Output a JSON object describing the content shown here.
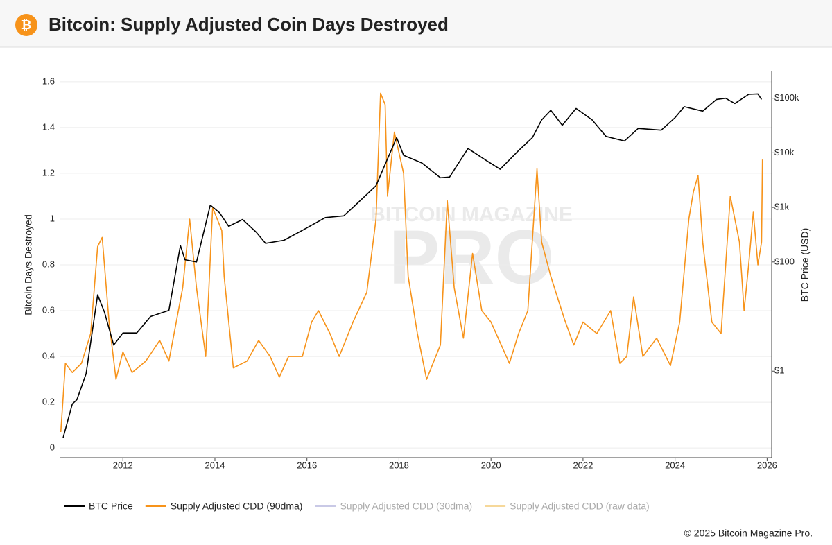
{
  "header": {
    "title": "Bitcoin: Supply Adjusted Coin Days Destroyed"
  },
  "footer": {
    "copyright": "© 2025 Bitcoin Magazine Pro."
  },
  "watermark": {
    "top": "BITCOIN MAGAZINE",
    "main": "PRO"
  },
  "chart_data": {
    "type": "line",
    "ylabel": "Bitcoin Days Destroyed",
    "y2label": "BTC Price (USD)",
    "xlim": [
      2010.64,
      2026.1
    ],
    "xticks": [
      2012,
      2014,
      2016,
      2018,
      2020,
      2022,
      2024,
      2026
    ],
    "ylim": [
      -0.042,
      1.645
    ],
    "yticks": [
      0,
      0.2,
      0.4,
      0.6,
      0.8,
      1,
      1.2,
      1.4,
      1.6
    ],
    "y2lim": [
      0.026,
      310000
    ],
    "y2log": true,
    "y2ticks": [
      {
        "value": 1,
        "label": "$1"
      },
      {
        "value": 100,
        "label": "$100"
      },
      {
        "value": 1000,
        "label": "$1k"
      },
      {
        "value": 10000,
        "label": "$10k"
      },
      {
        "value": 100000,
        "label": "$100k"
      }
    ],
    "grid": true,
    "series": [
      {
        "name": "BTC Price",
        "color": "#000000",
        "axis": "y2",
        "x": [
          2010.7,
          2010.9,
          2011.0,
          2011.2,
          2011.45,
          2011.6,
          2011.8,
          2012.0,
          2012.3,
          2012.6,
          2013.0,
          2013.25,
          2013.35,
          2013.6,
          2013.9,
          2014.1,
          2014.3,
          2014.6,
          2014.9,
          2015.1,
          2015.5,
          2015.9,
          2016.4,
          2016.8,
          2017.0,
          2017.5,
          2017.95,
          2018.1,
          2018.5,
          2018.9,
          2019.1,
          2019.5,
          2019.9,
          2020.2,
          2020.6,
          2020.9,
          2021.1,
          2021.3,
          2021.55,
          2021.85,
          2022.2,
          2022.5,
          2022.9,
          2023.2,
          2023.7,
          2024.0,
          2024.2,
          2024.6,
          2024.9,
          2025.1,
          2025.3,
          2025.6,
          2025.8,
          2025.88
        ],
        "values": [
          0.06,
          0.25,
          0.3,
          0.9,
          25,
          12,
          3,
          5,
          5,
          10,
          13,
          200,
          110,
          100,
          1100,
          800,
          450,
          600,
          350,
          220,
          250,
          380,
          650,
          700,
          1000,
          2500,
          19000,
          9000,
          6500,
          3500,
          3600,
          12000,
          7200,
          5000,
          11000,
          19000,
          40000,
          60000,
          32000,
          65000,
          40000,
          20000,
          16500,
          28000,
          26000,
          44000,
          70000,
          58000,
          95000,
          100000,
          80000,
          118000,
          120000,
          95000
        ]
      },
      {
        "name": "Supply Adjusted CDD (90dma)",
        "color": "#f7931a",
        "x": [
          2010.65,
          2010.75,
          2010.9,
          2011.1,
          2011.3,
          2011.45,
          2011.55,
          2011.7,
          2011.85,
          2012.0,
          2012.2,
          2012.5,
          2012.8,
          2013.0,
          2013.3,
          2013.45,
          2013.6,
          2013.8,
          2013.95,
          2014.15,
          2014.2,
          2014.4,
          2014.7,
          2014.95,
          2015.2,
          2015.4,
          2015.6,
          2015.9,
          2016.1,
          2016.25,
          2016.5,
          2016.7,
          2017.0,
          2017.3,
          2017.5,
          2017.6,
          2017.7,
          2017.75,
          2017.9,
          2018.1,
          2018.2,
          2018.4,
          2018.6,
          2018.8,
          2018.9,
          2019.05,
          2019.2,
          2019.4,
          2019.6,
          2019.8,
          2020.0,
          2020.4,
          2020.6,
          2020.8,
          2021.0,
          2021.1,
          2021.3,
          2021.6,
          2021.8,
          2022.0,
          2022.3,
          2022.6,
          2022.8,
          2022.95,
          2023.1,
          2023.3,
          2023.6,
          2023.9,
          2024.1,
          2024.3,
          2024.4,
          2024.5,
          2024.6,
          2024.8,
          2025.0,
          2025.2,
          2025.4,
          2025.5,
          2025.6,
          2025.7,
          2025.8,
          2025.88,
          2025.9
        ],
        "values": [
          0.07,
          0.37,
          0.33,
          0.37,
          0.5,
          0.88,
          0.92,
          0.55,
          0.3,
          0.42,
          0.33,
          0.38,
          0.47,
          0.38,
          0.7,
          1.0,
          0.7,
          0.4,
          1.05,
          0.95,
          0.75,
          0.35,
          0.38,
          0.47,
          0.4,
          0.31,
          0.4,
          0.4,
          0.55,
          0.6,
          0.5,
          0.4,
          0.55,
          0.68,
          1.0,
          1.55,
          1.5,
          1.1,
          1.38,
          1.2,
          0.75,
          0.5,
          0.3,
          0.4,
          0.45,
          1.08,
          0.7,
          0.48,
          0.85,
          0.6,
          0.55,
          0.37,
          0.5,
          0.6,
          1.22,
          0.9,
          0.75,
          0.56,
          0.45,
          0.55,
          0.5,
          0.6,
          0.37,
          0.4,
          0.66,
          0.4,
          0.48,
          0.36,
          0.55,
          1.0,
          1.12,
          1.19,
          0.9,
          0.55,
          0.5,
          1.1,
          0.9,
          0.6,
          0.8,
          1.03,
          0.8,
          0.9,
          1.26
        ]
      }
    ],
    "legend_hidden": [
      {
        "name": "Supply Adjusted CDD (30dma)",
        "color": "#c9c9e6"
      },
      {
        "name": "Supply Adjusted CDD (raw data)",
        "color": "#f6d89a"
      }
    ]
  }
}
